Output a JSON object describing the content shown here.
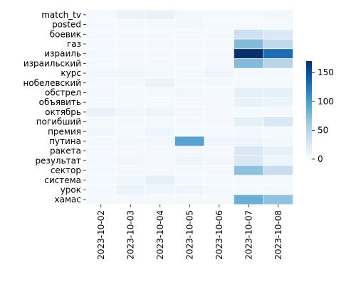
{
  "chart_data": {
    "type": "heatmap",
    "title": "",
    "xlabel": "",
    "ylabel": "",
    "x": [
      "2023-10-02",
      "2023-10-03",
      "2023-10-04",
      "2023-10-05",
      "2023-10-06",
      "2023-10-07",
      "2023-10-08"
    ],
    "y": [
      "match_tv",
      "posted",
      "боевик",
      "газ",
      "израиль",
      "израильский",
      "курс",
      "нобелевский",
      "обстрел",
      "объявить",
      "октябрь",
      "погибший",
      "премия",
      "путина",
      "ракета",
      "результат",
      "сектор",
      "система",
      "урок",
      "хамас"
    ],
    "values": [
      [
        3,
        10,
        12,
        4,
        3,
        3,
        5
      ],
      [
        2,
        2,
        2,
        5,
        3,
        2,
        2
      ],
      [
        2,
        2,
        2,
        2,
        2,
        35,
        25
      ],
      [
        2,
        2,
        2,
        2,
        2,
        75,
        45
      ],
      [
        3,
        2,
        2,
        2,
        2,
        170,
        130
      ],
      [
        3,
        2,
        3,
        2,
        2,
        75,
        50
      ],
      [
        5,
        6,
        4,
        3,
        8,
        3,
        3
      ],
      [
        2,
        4,
        10,
        4,
        3,
        3,
        3
      ],
      [
        5,
        3,
        3,
        5,
        3,
        15,
        15
      ],
      [
        3,
        2,
        3,
        2,
        2,
        12,
        10
      ],
      [
        12,
        7,
        8,
        4,
        3,
        3,
        3
      ],
      [
        2,
        2,
        2,
        2,
        2,
        15,
        25
      ],
      [
        5,
        3,
        8,
        3,
        3,
        4,
        3
      ],
      [
        3,
        5,
        5,
        95,
        6,
        8,
        5
      ],
      [
        2,
        2,
        2,
        4,
        2,
        25,
        15
      ],
      [
        3,
        5,
        3,
        8,
        5,
        25,
        8
      ],
      [
        3,
        2,
        2,
        2,
        2,
        70,
        40
      ],
      [
        3,
        7,
        15,
        4,
        3,
        3,
        3
      ],
      [
        3,
        10,
        8,
        8,
        3,
        3,
        3
      ],
      [
        2,
        2,
        2,
        2,
        2,
        85,
        70
      ]
    ],
    "vmin": 0,
    "vmax": 170,
    "colormap": [
      "#f7fbff",
      "#deebf7",
      "#c6dbef",
      "#9ecae1",
      "#6baed6",
      "#4292c6",
      "#2171b5",
      "#08519c",
      "#08306b"
    ],
    "colorbar": {
      "ticks": [
        0,
        50,
        100,
        150
      ]
    },
    "grid": true,
    "legend": "right"
  }
}
